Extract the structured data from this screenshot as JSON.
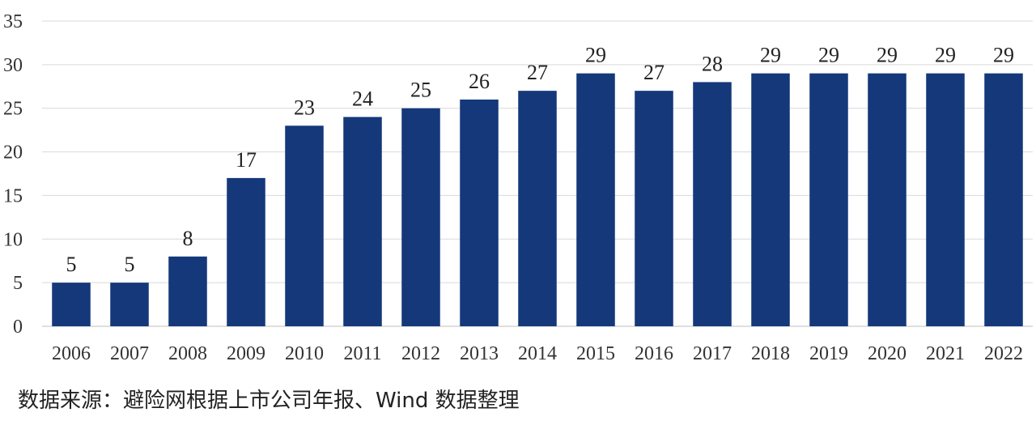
{
  "chart_data": {
    "type": "bar",
    "categories": [
      "2006",
      "2007",
      "2008",
      "2009",
      "2010",
      "2011",
      "2012",
      "2013",
      "2014",
      "2015",
      "2016",
      "2017",
      "2018",
      "2019",
      "2020",
      "2021",
      "2022"
    ],
    "values": [
      5,
      5,
      8,
      17,
      23,
      24,
      25,
      26,
      27,
      29,
      27,
      28,
      29,
      29,
      29,
      29,
      29
    ],
    "ylim": [
      0,
      35
    ],
    "yticks": [
      0,
      5,
      10,
      15,
      20,
      25,
      30,
      35
    ],
    "grid": true,
    "bar_color": "#14387a",
    "data_labels": true
  },
  "source_note": "数据来源：避险网根据上市公司年报、Wind 数据整理"
}
